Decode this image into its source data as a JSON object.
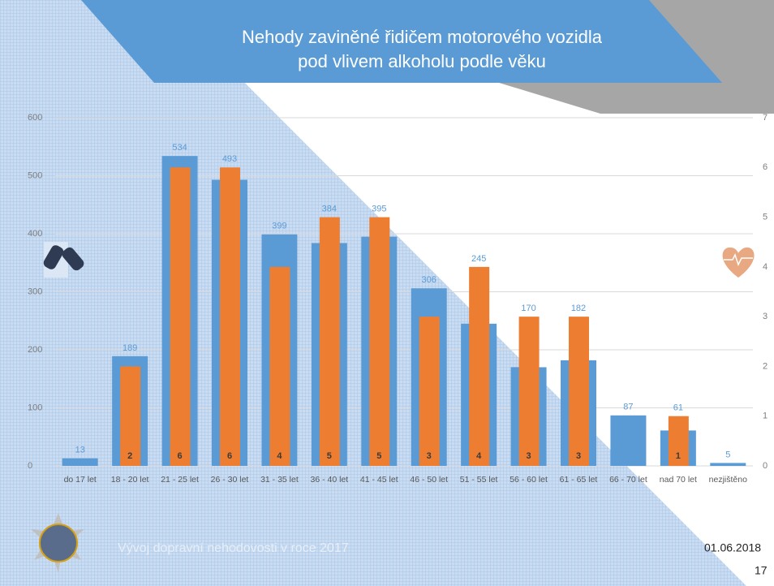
{
  "chart_data": {
    "type": "bar",
    "title": [
      "Nehody zaviněné řidičem motorového vozidla",
      "pod vlivem alkoholu podle věku"
    ],
    "categories": [
      "do 17 let",
      "18 - 20 let",
      "21 - 25 let",
      "26 - 30 let",
      "31 - 35 let",
      "36 - 40 let",
      "41 - 45 let",
      "46 - 50 let",
      "51 - 55 let",
      "56 - 60 let",
      "61 - 65 let",
      "66 - 70 let",
      "nad 70 let",
      "nezjištěno"
    ],
    "series": [
      {
        "color": "#5b9bd5",
        "values": [
          13,
          189,
          534,
          493,
          399,
          384,
          395,
          306,
          245,
          170,
          182,
          87,
          61,
          5
        ]
      },
      {
        "color": "#ed7d31",
        "axis": "y2",
        "values": [
          null,
          2,
          6,
          6,
          4,
          5,
          5,
          3,
          4,
          3,
          3,
          null,
          1,
          null
        ]
      }
    ],
    "ylim": [
      0,
      600
    ],
    "yticks": [
      0,
      100,
      200,
      300,
      400,
      500,
      600
    ],
    "y2lim": [
      0,
      7
    ],
    "y2ticks": [
      0,
      1,
      2,
      3,
      4,
      5,
      6,
      7
    ],
    "grid": true
  },
  "footer": {
    "text": "Vývoj dopravní nehodovosti v roce 2017",
    "date": "01.06.2018",
    "page": "17"
  }
}
